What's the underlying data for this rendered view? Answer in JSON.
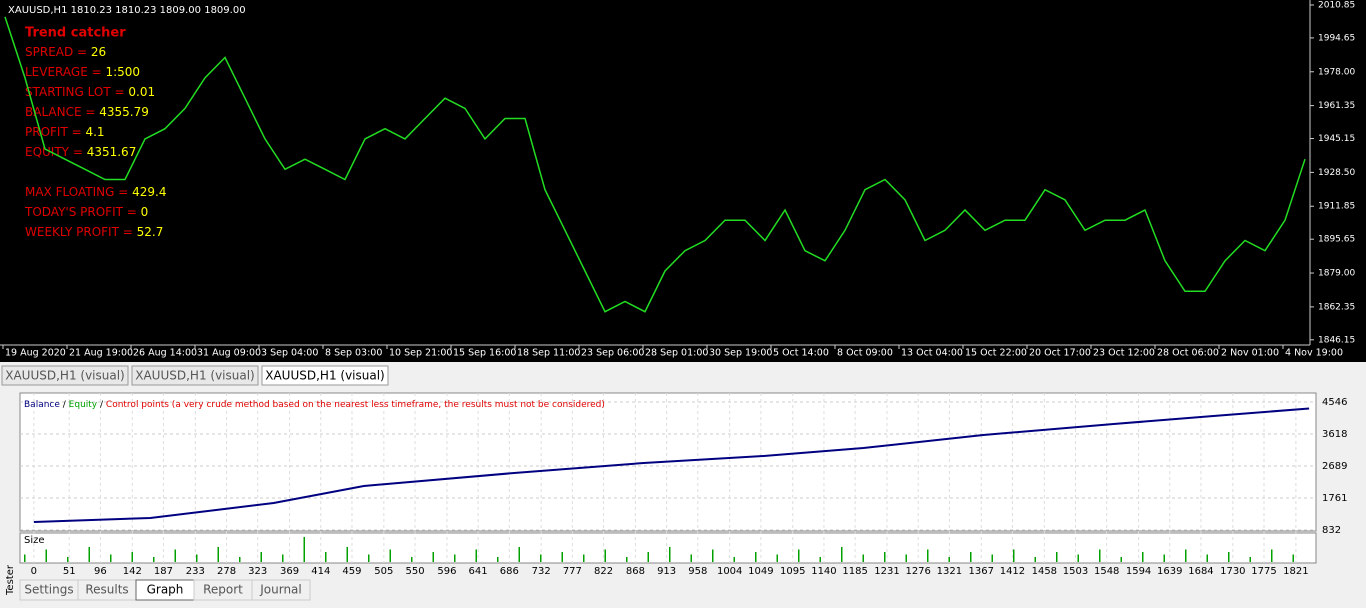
{
  "chart": {
    "header": "XAUUSD,H1  1810.23 1810.23 1809.00 1809.00",
    "title": "Trend catcher",
    "stats": [
      {
        "label": "SPREAD = ",
        "value": "26"
      },
      {
        "label": "LEVERAGE = ",
        "value": "1:500"
      },
      {
        "label": "STARTING LOT = ",
        "value": "0.01"
      },
      {
        "label": "BALANCE = ",
        "value": "4355.79"
      },
      {
        "label": "PROFIT = ",
        "value": "4.1"
      },
      {
        "label": "EQUITY = ",
        "value": "4351.67"
      },
      {
        "label": "MAX FLOATING = ",
        "value": "429.4"
      },
      {
        "label": "TODAY'S PROFIT = ",
        "value": "0"
      },
      {
        "label": "WEEKLY PROFIT = ",
        "value": "52.7"
      }
    ],
    "ylim": [
      1843.6,
      2013.3
    ],
    "yticks": [
      2010.85,
      1994.65,
      {
        "value": 1978,
        "label": "1978.00"
      },
      1961.35,
      1945.15,
      {
        "value": 1928.5,
        "label": "1928.50"
      },
      1911.85,
      1895.65,
      {
        "value": 1879,
        "label": "1879.00"
      },
      1862.35,
      1846.15
    ],
    "categories": [
      "19 Aug 2020",
      "21 Aug 19:00",
      "26 Aug 14:00",
      "31 Aug 09:00",
      "3 Sep 04:00",
      "8 Sep 03:00",
      "10 Sep 21:00",
      "15 Sep 16:00",
      "18 Sep 11:00",
      "23 Sep 06:00",
      "28 Sep 01:00",
      "30 Sep 19:00",
      "5 Oct 14:00",
      "8 Oct 09:00",
      "13 Oct 04:00",
      "15 Oct 22:00",
      "20 Oct 17:00",
      "23 Oct 12:00",
      "28 Oct 06:00",
      "2 Nov 01:00",
      "4 Nov 19:00"
    ],
    "price": {
      "color": "#22dd22",
      "values": [
        2005,
        1975,
        1940,
        1935,
        1930,
        1925,
        1925,
        1945,
        1950,
        1960,
        1975,
        1985,
        1965,
        1945,
        1930,
        1935,
        1930,
        1925,
        1945,
        1950,
        1945,
        1955,
        1965,
        1960,
        1945,
        1955,
        1955,
        1920,
        1900,
        1880,
        1860,
        1865,
        1860,
        1880,
        1890,
        1895,
        1905,
        1905,
        1895,
        1910,
        1890,
        1885,
        1900,
        1920,
        1925,
        1915,
        1895,
        1900,
        1910,
        1900,
        1905,
        1905,
        1920,
        1915,
        1900,
        1905,
        1905,
        1910,
        1885,
        1870,
        1870,
        1885,
        1895,
        1890,
        1905,
        1935
      ]
    }
  },
  "tabs": [
    "XAUUSD,H1 (visual)",
    "XAUUSD,H1 (visual)",
    "XAUUSD,H1 (visual)"
  ],
  "graph": {
    "legend": {
      "balance": "Balance",
      "separator": "/",
      "equity": "Equity",
      "control": "Control points (a very crude method based on the nearest less timeframe, the results must not be considered)"
    },
    "size_label": "Size",
    "xlim": [
      -20,
      1850
    ],
    "xticks": [
      0,
      51,
      96,
      142,
      187,
      233,
      278,
      323,
      369,
      414,
      459,
      505,
      550,
      596,
      641,
      686,
      732,
      777,
      822,
      868,
      913,
      958,
      1004,
      1049,
      1095,
      1140,
      1185,
      1231,
      1276,
      1321,
      1367,
      1412,
      1458,
      1503,
      1548,
      1594,
      1639,
      1684,
      1730,
      1775,
      1821
    ],
    "ylim": [
      832,
      4748
    ],
    "yticks": [
      4546,
      3618,
      2689,
      1761,
      832
    ],
    "balance": {
      "color": "#000080",
      "x": [
        0,
        168,
        346,
        476,
        693,
        880,
        1053,
        1197,
        1370,
        1558,
        1702,
        1840
      ],
      "values": [
        1064,
        1180,
        1615,
        2108,
        2485,
        2775,
        2978,
        3210,
        3587,
        3906,
        4138,
        4356
      ]
    },
    "size": {
      "color": "#00a000",
      "values": [
        3,
        5,
        2,
        6,
        3,
        4,
        2,
        5,
        3,
        6,
        2,
        4,
        3,
        10,
        4,
        6,
        3,
        5,
        2,
        4,
        3,
        5,
        2,
        6,
        3,
        4,
        3,
        5,
        2,
        4,
        6,
        3,
        5,
        2,
        4,
        3,
        5,
        2,
        6,
        3,
        4,
        3,
        5,
        2,
        4,
        3,
        5,
        2,
        4,
        3,
        5,
        2,
        4,
        3,
        5,
        3,
        4,
        2,
        5,
        3
      ]
    }
  },
  "bottom_tabs": [
    "Settings",
    "Results",
    "Graph",
    "Report",
    "Journal"
  ],
  "side_label": "Tester"
}
